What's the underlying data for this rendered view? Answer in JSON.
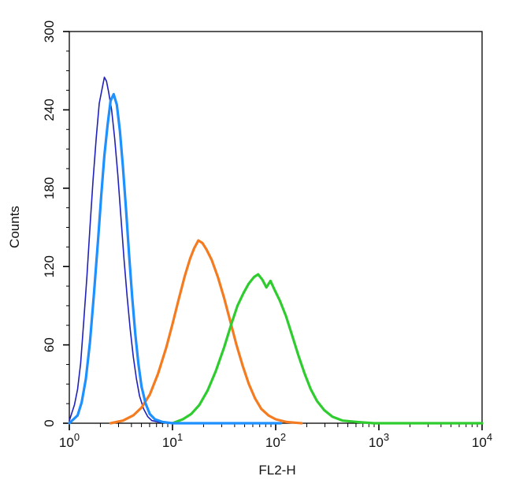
{
  "chart_data": {
    "type": "line",
    "title": "",
    "xlabel": "FL2-H",
    "ylabel": "Counts",
    "x_scale": "log10",
    "xlim_log": [
      0,
      4
    ],
    "ylim": [
      0,
      300
    ],
    "grid": false,
    "legend": "none",
    "background_color": "#ffffff",
    "frame_color": "#000000",
    "y_ticks": [
      0,
      60,
      120,
      180,
      240,
      300
    ],
    "x_ticks": [
      {
        "log": 0,
        "base": "10",
        "exp": "0"
      },
      {
        "log": 1,
        "base": "10",
        "exp": "1"
      },
      {
        "log": 2,
        "base": "10",
        "exp": "2"
      },
      {
        "log": 3,
        "base": "10",
        "exp": "3"
      },
      {
        "log": 4,
        "base": "10",
        "exp": "4"
      }
    ],
    "series": [
      {
        "name": "dark-blue",
        "color": "#2020bb",
        "width": 1.6,
        "peak_x": 2.2,
        "peak_count": 265,
        "points": [
          [
            0.0,
            2
          ],
          [
            0.05,
            14
          ],
          [
            0.08,
            26
          ],
          [
            0.11,
            46
          ],
          [
            0.14,
            78
          ],
          [
            0.17,
            112
          ],
          [
            0.2,
            150
          ],
          [
            0.23,
            186
          ],
          [
            0.26,
            218
          ],
          [
            0.29,
            245
          ],
          [
            0.32,
            257
          ],
          [
            0.34,
            265
          ],
          [
            0.36,
            262
          ],
          [
            0.38,
            254
          ],
          [
            0.41,
            240
          ],
          [
            0.44,
            218
          ],
          [
            0.47,
            190
          ],
          [
            0.5,
            158
          ],
          [
            0.53,
            126
          ],
          [
            0.56,
            97
          ],
          [
            0.59,
            72
          ],
          [
            0.62,
            51
          ],
          [
            0.65,
            34
          ],
          [
            0.68,
            21
          ],
          [
            0.72,
            11
          ],
          [
            0.76,
            5
          ],
          [
            0.8,
            2
          ],
          [
            0.86,
            1
          ],
          [
            0.95,
            0
          ],
          [
            1.05,
            0
          ]
        ]
      },
      {
        "name": "orange",
        "color": "#f47b20",
        "width": 3.2,
        "peak_x": 18,
        "peak_count": 140,
        "points": [
          [
            0.4,
            0
          ],
          [
            0.52,
            2
          ],
          [
            0.62,
            6
          ],
          [
            0.7,
            12
          ],
          [
            0.78,
            22
          ],
          [
            0.86,
            38
          ],
          [
            0.94,
            58
          ],
          [
            1.0,
            76
          ],
          [
            1.06,
            95
          ],
          [
            1.12,
            113
          ],
          [
            1.17,
            126
          ],
          [
            1.21,
            134
          ],
          [
            1.25,
            140
          ],
          [
            1.29,
            138
          ],
          [
            1.33,
            133
          ],
          [
            1.38,
            125
          ],
          [
            1.44,
            112
          ],
          [
            1.5,
            96
          ],
          [
            1.56,
            78
          ],
          [
            1.62,
            60
          ],
          [
            1.68,
            44
          ],
          [
            1.74,
            30
          ],
          [
            1.8,
            19
          ],
          [
            1.86,
            11
          ],
          [
            1.93,
            6
          ],
          [
            2.0,
            3
          ],
          [
            2.1,
            1
          ],
          [
            2.25,
            0
          ]
        ]
      },
      {
        "name": "green",
        "color": "#2fcc2f",
        "width": 3.2,
        "peak_x": 68,
        "peak_count": 114,
        "points": [
          [
            1.0,
            0
          ],
          [
            1.1,
            3
          ],
          [
            1.18,
            7
          ],
          [
            1.26,
            14
          ],
          [
            1.34,
            25
          ],
          [
            1.42,
            40
          ],
          [
            1.5,
            58
          ],
          [
            1.57,
            76
          ],
          [
            1.63,
            90
          ],
          [
            1.69,
            100
          ],
          [
            1.74,
            107
          ],
          [
            1.79,
            112
          ],
          [
            1.83,
            114
          ],
          [
            1.87,
            110
          ],
          [
            1.91,
            104
          ],
          [
            1.95,
            109
          ],
          [
            1.99,
            102
          ],
          [
            2.04,
            94
          ],
          [
            2.1,
            82
          ],
          [
            2.16,
            67
          ],
          [
            2.22,
            52
          ],
          [
            2.28,
            38
          ],
          [
            2.34,
            26
          ],
          [
            2.4,
            17
          ],
          [
            2.47,
            10
          ],
          [
            2.55,
            5
          ],
          [
            2.65,
            2
          ],
          [
            2.78,
            1
          ],
          [
            2.95,
            0
          ],
          [
            3.3,
            0
          ],
          [
            3.7,
            0
          ],
          [
            4.0,
            0
          ]
        ]
      },
      {
        "name": "light-blue",
        "color": "#1e90ff",
        "width": 3.2,
        "peak_x": 2.7,
        "peak_count": 252,
        "points": [
          [
            0.0,
            0
          ],
          [
            0.08,
            6
          ],
          [
            0.12,
            16
          ],
          [
            0.16,
            34
          ],
          [
            0.2,
            62
          ],
          [
            0.24,
            100
          ],
          [
            0.28,
            142
          ],
          [
            0.31,
            175
          ],
          [
            0.34,
            205
          ],
          [
            0.37,
            228
          ],
          [
            0.4,
            247
          ],
          [
            0.43,
            252
          ],
          [
            0.46,
            244
          ],
          [
            0.49,
            224
          ],
          [
            0.52,
            196
          ],
          [
            0.55,
            163
          ],
          [
            0.58,
            128
          ],
          [
            0.61,
            96
          ],
          [
            0.64,
            68
          ],
          [
            0.67,
            45
          ],
          [
            0.7,
            28
          ],
          [
            0.74,
            15
          ],
          [
            0.78,
            7
          ],
          [
            0.83,
            3
          ],
          [
            0.9,
            1
          ],
          [
            1.0,
            0
          ],
          [
            1.2,
            0
          ],
          [
            1.5,
            0
          ],
          [
            1.8,
            0
          ],
          [
            2.05,
            0
          ]
        ]
      }
    ]
  }
}
